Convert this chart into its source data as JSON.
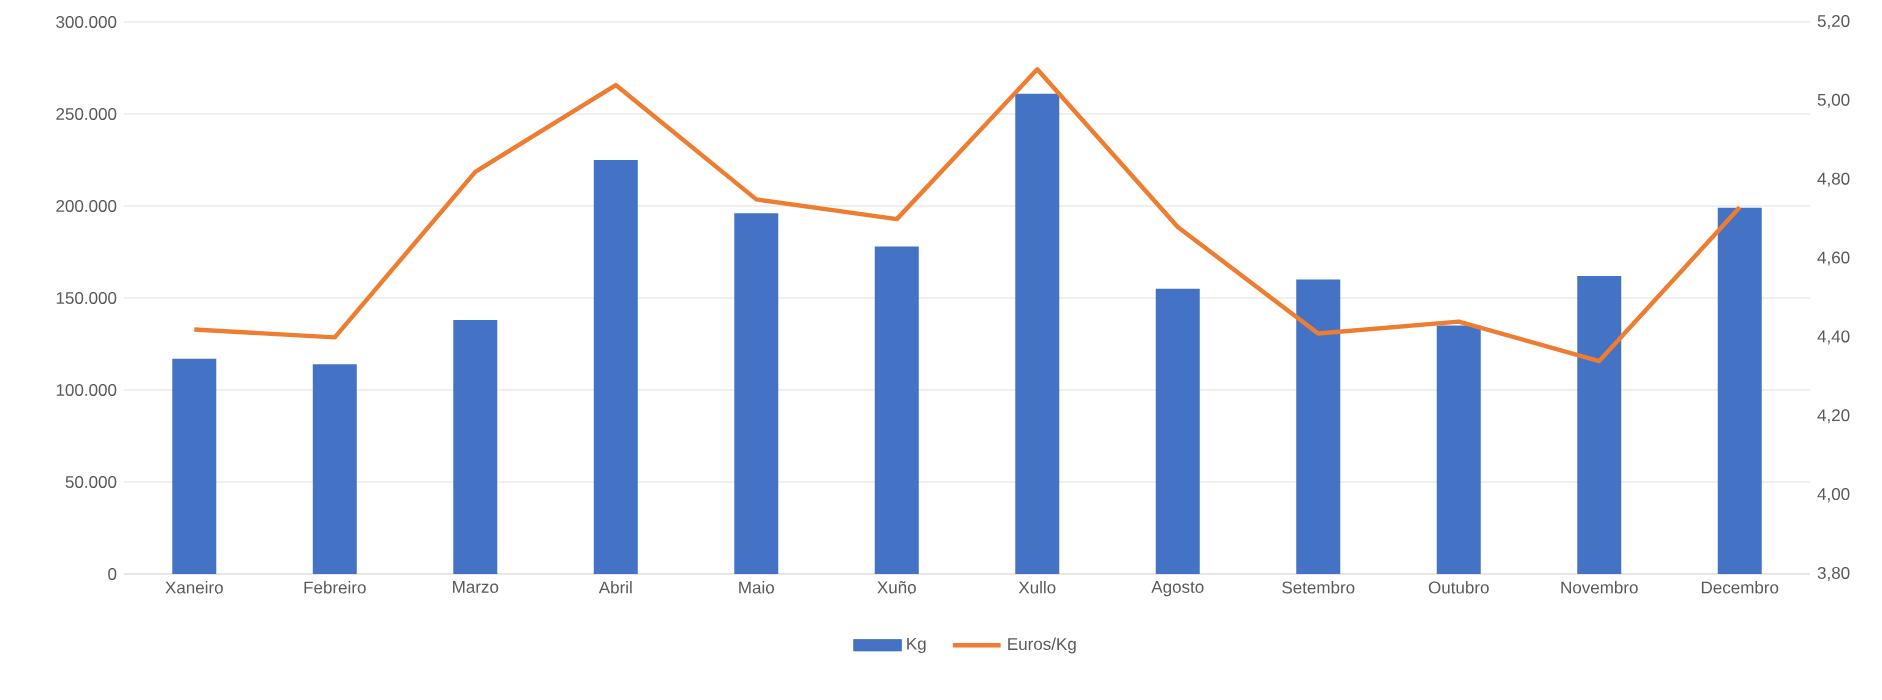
{
  "chart_data": {
    "type": "bar",
    "categories": [
      "Xaneiro",
      "Febreiro",
      "Marzo",
      "Abril",
      "Maio",
      "Xuño",
      "Xullo",
      "Agosto",
      "Setembro",
      "Outubro",
      "Novembro",
      "Decembro"
    ],
    "series": [
      {
        "name": "Kg",
        "color": "#4472c4",
        "values": [
          117000,
          114000,
          138000,
          225000,
          196000,
          178000,
          261000,
          155000,
          160000,
          135000,
          162000,
          199000
        ]
      },
      {
        "name": "Euros/Kg",
        "type": "line",
        "axis": "y2",
        "color": "#ed7d31",
        "values": [
          4.42,
          4.4,
          4.82,
          5.04,
          4.75,
          4.7,
          5.08,
          4.68,
          4.41,
          4.44,
          4.34,
          4.73
        ]
      }
    ],
    "ylim": [
      0,
      300000
    ],
    "yticks": [
      0,
      {
        "value": 50000,
        "label": "50.000"
      },
      {
        "value": 100000,
        "label": "100.000"
      },
      {
        "value": 150000,
        "label": "150.000"
      },
      {
        "value": 200000,
        "label": "200.000"
      },
      {
        "value": 250000,
        "label": "250.000"
      },
      {
        "value": 300000,
        "label": "300.000"
      }
    ],
    "y2lim": [
      3.8,
      5.2
    ],
    "y2ticks": [
      {
        "value": 3.8,
        "label": "3,80"
      },
      {
        "value": 4.0,
        "label": "4,00"
      },
      {
        "value": 4.2,
        "label": "4,20"
      },
      {
        "value": 4.4,
        "label": "4,40"
      },
      {
        "value": 4.6,
        "label": "4,60"
      },
      {
        "value": 4.8,
        "label": "4,80"
      },
      {
        "value": 5.0,
        "label": "5,00"
      },
      {
        "value": 5.2,
        "label": "5,20"
      }
    ],
    "grid": "y",
    "legend": "bottom",
    "marker": "none",
    "line_style": "solid"
  }
}
